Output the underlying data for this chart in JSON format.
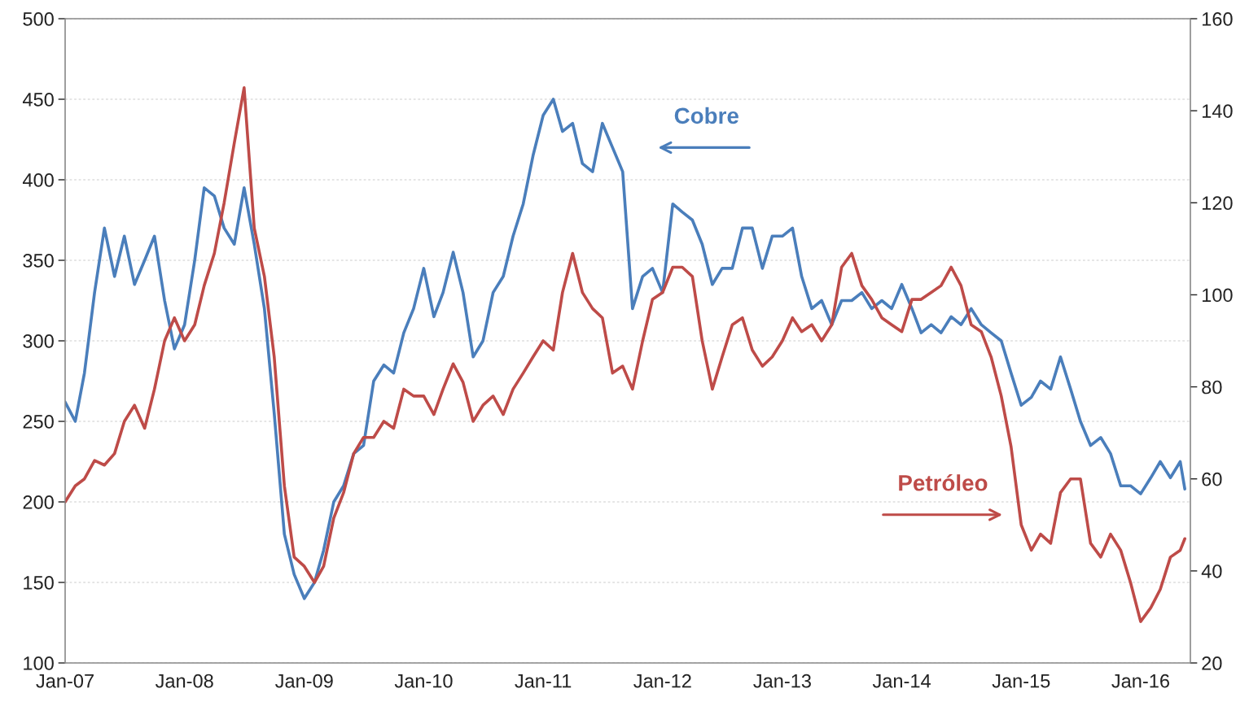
{
  "chart_data": {
    "type": "line",
    "x": [
      "2007-01",
      "2007-02",
      "2007-03",
      "2007-04",
      "2007-05",
      "2007-06",
      "2007-07",
      "2007-08",
      "2007-09",
      "2007-10",
      "2007-11",
      "2007-12",
      "2008-01",
      "2008-02",
      "2008-03",
      "2008-04",
      "2008-05",
      "2008-06",
      "2008-07",
      "2008-08",
      "2008-09",
      "2008-10",
      "2008-11",
      "2008-12",
      "2009-01",
      "2009-02",
      "2009-03",
      "2009-04",
      "2009-05",
      "2009-06",
      "2009-07",
      "2009-08",
      "2009-09",
      "2009-10",
      "2009-11",
      "2009-12",
      "2010-01",
      "2010-02",
      "2010-03",
      "2010-04",
      "2010-05",
      "2010-06",
      "2010-07",
      "2010-08",
      "2010-09",
      "2010-10",
      "2010-11",
      "2010-12",
      "2011-01",
      "2011-02",
      "2011-03",
      "2011-04",
      "2011-05",
      "2011-06",
      "2011-07",
      "2011-08",
      "2011-09",
      "2011-10",
      "2011-11",
      "2011-12",
      "2012-01",
      "2012-02",
      "2012-03",
      "2012-04",
      "2012-05",
      "2012-06",
      "2012-07",
      "2012-08",
      "2012-09",
      "2012-10",
      "2012-11",
      "2012-12",
      "2013-01",
      "2013-02",
      "2013-03",
      "2013-04",
      "2013-05",
      "2013-06",
      "2013-07",
      "2013-08",
      "2013-09",
      "2013-10",
      "2013-11",
      "2013-12",
      "2014-01",
      "2014-02",
      "2014-03",
      "2014-04",
      "2014-05",
      "2014-06",
      "2014-07",
      "2014-08",
      "2014-09",
      "2014-10",
      "2014-11",
      "2014-12",
      "2015-01",
      "2015-02",
      "2015-03",
      "2015-04",
      "2015-05",
      "2015-06",
      "2015-07",
      "2015-08",
      "2015-09",
      "2015-10",
      "2015-11",
      "2015-12",
      "2016-01",
      "2016-02",
      "2016-03",
      "2016-04",
      "2016-05",
      "2016-05-15"
    ],
    "series": [
      {
        "name": "Cobre",
        "color": "#4a7ebb",
        "values": [
          262,
          250,
          280,
          330,
          370,
          340,
          365,
          335,
          350,
          365,
          325,
          295,
          310,
          350,
          395,
          390,
          370,
          360,
          395,
          360,
          320,
          255,
          180,
          155,
          140,
          150,
          170,
          200,
          210,
          230,
          235,
          275,
          285,
          280,
          305,
          320,
          345,
          315,
          330,
          355,
          330,
          290,
          300,
          330,
          340,
          365,
          385,
          415,
          440,
          450,
          430,
          435,
          410,
          405,
          435,
          420,
          405,
          320,
          340,
          345,
          330,
          385,
          380,
          375,
          360,
          335,
          345,
          345,
          370,
          370,
          345,
          365,
          365,
          370,
          340,
          320,
          325,
          310,
          325,
          325,
          330,
          320,
          325,
          320,
          335,
          320,
          305,
          310,
          305,
          315,
          310,
          320,
          310,
          305,
          300,
          280,
          260,
          265,
          275,
          270,
          290,
          270,
          250,
          235,
          240,
          230,
          210,
          210,
          205,
          215,
          225,
          215,
          225,
          208
        ]
      },
      {
        "name": "Petróleo",
        "color": "#be4b48",
        "axis": "y2",
        "values": [
          55,
          58.5,
          60,
          64,
          63,
          65.5,
          72.5,
          76,
          71,
          79.5,
          90,
          95,
          90,
          93.5,
          102,
          109,
          120,
          133,
          145,
          114.5,
          104,
          86.5,
          58.5,
          43,
          41,
          37.5,
          41,
          51.5,
          57,
          65.5,
          69,
          69,
          72.5,
          71,
          79.5,
          78,
          78,
          74,
          79.5,
          85,
          81,
          72.5,
          76,
          78,
          74,
          79.5,
          83,
          86.5,
          90,
          88,
          100.5,
          109,
          100.5,
          97,
          95,
          83,
          84.5,
          79.5,
          90,
          99,
          100.5,
          106,
          106,
          104,
          90,
          79.5,
          86.5,
          93.5,
          95,
          88,
          84.5,
          86.5,
          90,
          95,
          92,
          93.5,
          90,
          93.5,
          106,
          109,
          102,
          99,
          95,
          93.5,
          92,
          99,
          99,
          100.5,
          102,
          106,
          102,
          93.5,
          92,
          86.5,
          78,
          67,
          50,
          44.5,
          48,
          46,
          57,
          60,
          60,
          46,
          43,
          48,
          44.5,
          37.5,
          29,
          32,
          36,
          43,
          44.5,
          47
        ]
      }
    ],
    "xlim": [
      "2007-01",
      "2016-06"
    ],
    "xticks": [
      {
        "value": "2007-01",
        "label": "Jan-07"
      },
      {
        "value": "2008-01",
        "label": "Jan-08"
      },
      {
        "value": "2009-01",
        "label": "Jan-09"
      },
      {
        "value": "2010-01",
        "label": "Jan-10"
      },
      {
        "value": "2011-01",
        "label": "Jan-11"
      },
      {
        "value": "2012-01",
        "label": "Jan-12"
      },
      {
        "value": "2013-01",
        "label": "Jan-13"
      },
      {
        "value": "2014-01",
        "label": "Jan-14"
      },
      {
        "value": "2015-01",
        "label": "Jan-15"
      },
      {
        "value": "2016-01",
        "label": "Jan-16"
      }
    ],
    "ylim": [
      100,
      500
    ],
    "yticks": [
      100,
      150,
      200,
      250,
      300,
      350,
      400,
      450,
      500
    ],
    "y2lim": [
      20,
      160
    ],
    "y2ticks": [
      20,
      40,
      60,
      80,
      100,
      120,
      140,
      160
    ],
    "grid": "y",
    "legend": false,
    "line_style": "solid"
  }
}
